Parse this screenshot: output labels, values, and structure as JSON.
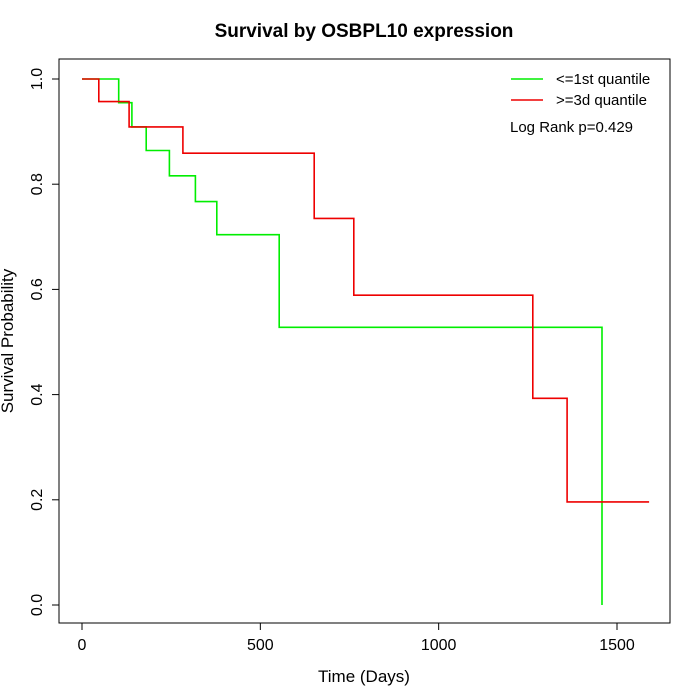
{
  "chart_data": {
    "type": "line",
    "step": true,
    "title": "Survival by OSBPL10 expression",
    "xlabel": "Time (Days)",
    "ylabel": "Survival Probability",
    "xlim": [
      0,
      1650
    ],
    "ylim": [
      0,
      1.0
    ],
    "x_ticks": [
      0,
      500,
      1000,
      1500
    ],
    "y_ticks": [
      0.0,
      0.2,
      0.4,
      0.6,
      0.8,
      1.0
    ],
    "x_tick_labels": [
      "0",
      "500",
      "1000",
      "1500"
    ],
    "y_tick_labels": [
      "0.0",
      "0.2",
      "0.4",
      "0.6",
      "0.8",
      "1.0"
    ],
    "grid": false,
    "legend_position": "top-right",
    "annotation": "Log Rank p=0.429",
    "series": [
      {
        "name": "<=1st quantile",
        "color": "#00ee00",
        "points": [
          [
            0,
            1.0
          ],
          [
            103,
            1.0
          ],
          [
            103,
            0.955
          ],
          [
            140,
            0.955
          ],
          [
            140,
            0.909
          ],
          [
            180,
            0.909
          ],
          [
            180,
            0.864
          ],
          [
            245,
            0.864
          ],
          [
            245,
            0.816
          ],
          [
            318,
            0.816
          ],
          [
            318,
            0.767
          ],
          [
            378,
            0.767
          ],
          [
            378,
            0.704
          ],
          [
            553,
            0.704
          ],
          [
            553,
            0.528
          ],
          [
            1458,
            0.528
          ],
          [
            1458,
            0.0
          ]
        ]
      },
      {
        "name": ">=3d quantile",
        "color": "#ee0000",
        "points": [
          [
            0,
            1.0
          ],
          [
            47,
            1.0
          ],
          [
            47,
            0.957
          ],
          [
            132,
            0.957
          ],
          [
            132,
            0.909
          ],
          [
            283,
            0.909
          ],
          [
            283,
            0.859
          ],
          [
            651,
            0.859
          ],
          [
            651,
            0.735
          ],
          [
            762,
            0.735
          ],
          [
            762,
            0.589
          ],
          [
            1264,
            0.589
          ],
          [
            1264,
            0.393
          ],
          [
            1360,
            0.393
          ],
          [
            1360,
            0.196
          ],
          [
            1590,
            0.196
          ]
        ]
      }
    ]
  }
}
